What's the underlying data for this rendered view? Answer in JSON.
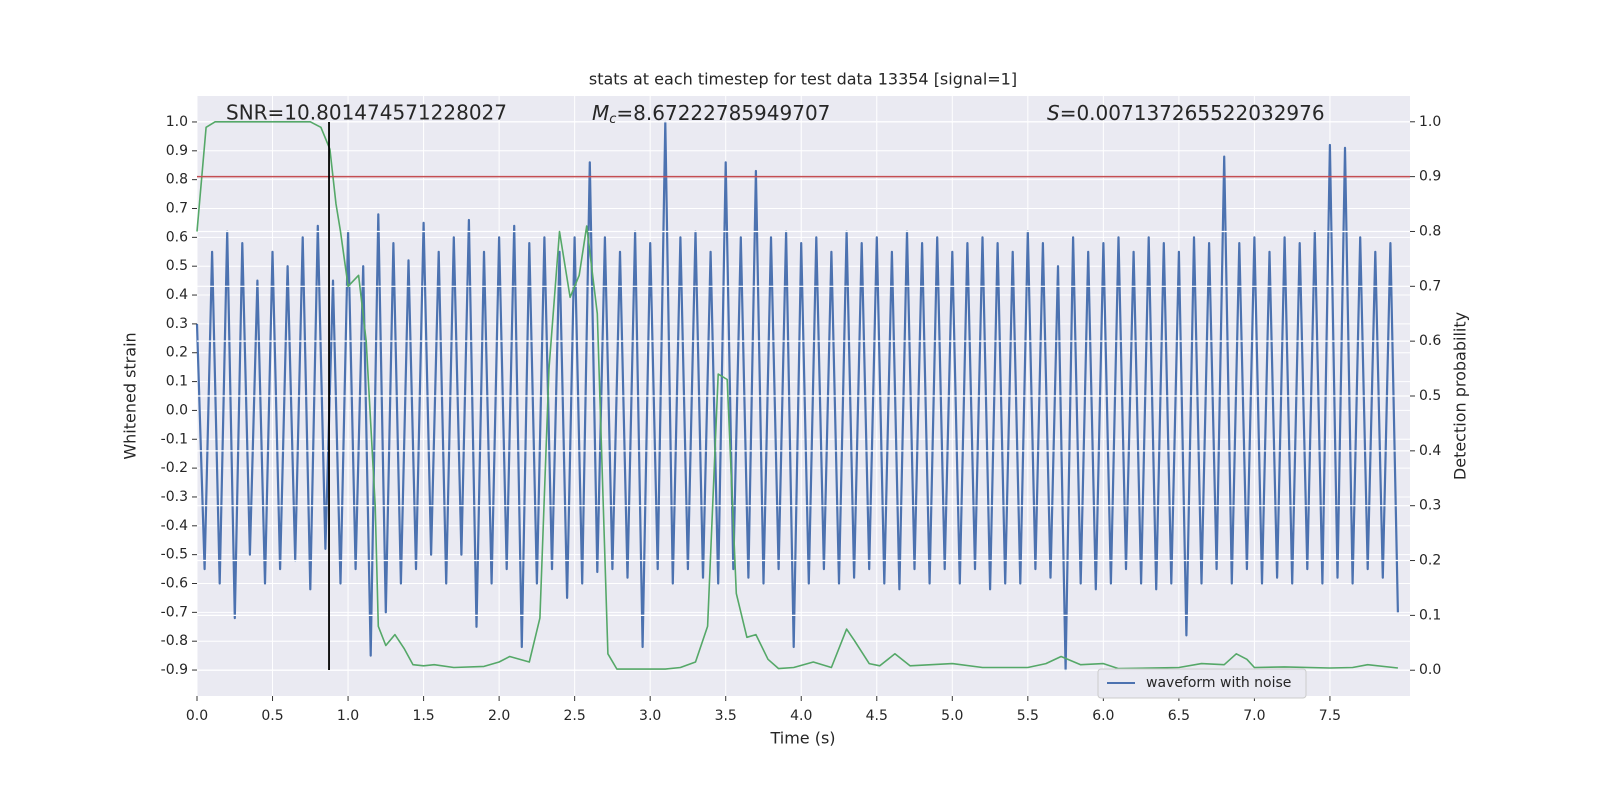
{
  "chart_data": {
    "type": "line",
    "title": "stats at each timestep for test data 13354 [signal=1]",
    "xlabel": "Time (s)",
    "ylabel": "Whitened strain",
    "y2label": "Detection probability",
    "annotations": [
      {
        "text": "SNR=10.801474571228027"
      },
      {
        "symbol": "M",
        "subscript": "c",
        "text": "=8.67222785949707"
      },
      {
        "symbol": "S",
        "text": "=0.007137265522032976"
      }
    ],
    "xlim": [
      0,
      8.03
    ],
    "ylim": [
      -0.99,
      1.09
    ],
    "y2lim": [
      -0.047,
      1.047
    ],
    "xticks": [
      {
        "value": 0,
        "label": "0.0"
      },
      0.5,
      {
        "value": 1,
        "label": "1.0"
      },
      1.5,
      {
        "value": 2,
        "label": "2.0"
      },
      2.5,
      {
        "value": 3,
        "label": "3.0"
      },
      3.5,
      {
        "value": 4,
        "label": "4.0"
      },
      4.5,
      {
        "value": 5,
        "label": "5.0"
      },
      5.5,
      {
        "value": 6,
        "label": "6.0"
      },
      6.5,
      {
        "value": 7,
        "label": "7.0"
      },
      7.5
    ],
    "yticks": [
      -0.9,
      -0.8,
      -0.7,
      -0.6,
      -0.5,
      -0.4,
      -0.3,
      -0.2,
      -0.1,
      {
        "value": 0,
        "label": "0.0"
      },
      0.1,
      0.2,
      0.3,
      0.4,
      0.5,
      0.6,
      0.7,
      0.8,
      0.9,
      {
        "value": 1,
        "label": "1.0"
      }
    ],
    "y2ticks": [
      {
        "value": 0,
        "label": "0.0"
      },
      0.1,
      0.2,
      0.3,
      0.4,
      0.5,
      0.6,
      0.7,
      0.8,
      0.9,
      {
        "value": 1,
        "label": "1.0"
      }
    ],
    "grid": true,
    "legend": "lower right",
    "series": [
      {
        "name": "waveform with noise",
        "color": "#4c72b0",
        "axis": "y",
        "x": [
          0,
          0.05,
          0.1,
          0.15,
          0.2,
          0.25,
          0.3,
          0.35,
          0.4,
          0.45,
          0.5,
          0.55,
          0.6,
          0.65,
          0.7,
          0.75,
          0.8,
          0.85,
          0.9,
          0.95,
          1,
          1.05,
          1.1,
          1.15,
          1.2,
          1.25,
          1.3,
          1.35,
          1.4,
          1.45,
          1.5,
          1.55,
          1.6,
          1.65,
          1.7,
          1.75,
          1.8,
          1.85,
          1.9,
          1.95,
          2,
          2.05,
          2.1,
          2.15,
          2.2,
          2.25,
          2.3,
          2.35,
          2.4,
          2.45,
          2.5,
          2.55,
          2.6,
          2.65,
          2.7,
          2.75,
          2.8,
          2.85,
          2.9,
          2.95,
          3,
          3.05,
          3.1,
          3.15,
          3.2,
          3.25,
          3.3,
          3.35,
          3.4,
          3.45,
          3.5,
          3.55,
          3.6,
          3.65,
          3.7,
          3.75,
          3.8,
          3.85,
          3.9,
          3.95,
          4,
          4.05,
          4.1,
          4.15,
          4.2,
          4.25,
          4.3,
          4.35,
          4.4,
          4.45,
          4.5,
          4.55,
          4.6,
          4.65,
          4.7,
          4.75,
          4.8,
          4.85,
          4.9,
          4.95,
          5,
          5.05,
          5.1,
          5.15,
          5.2,
          5.25,
          5.3,
          5.35,
          5.4,
          5.45,
          5.5,
          5.55,
          5.6,
          5.65,
          5.7,
          5.75,
          5.8,
          5.85,
          5.9,
          5.95,
          6,
          6.05,
          6.1,
          6.15,
          6.2,
          6.25,
          6.3,
          6.35,
          6.4,
          6.45,
          6.5,
          6.55,
          6.6,
          6.65,
          6.7,
          6.75,
          6.8,
          6.85,
          6.9,
          6.95,
          7,
          7.05,
          7.1,
          7.15,
          7.2,
          7.25,
          7.3,
          7.35,
          7.4,
          7.45,
          7.5,
          7.55,
          7.6,
          7.65,
          7.7,
          7.75,
          7.8,
          7.85,
          7.9,
          7.95
        ],
        "values": [
          0.3,
          -0.55,
          0.55,
          -0.6,
          0.62,
          -0.72,
          0.58,
          -0.5,
          0.45,
          -0.6,
          0.55,
          -0.55,
          0.5,
          -0.52,
          0.6,
          -0.62,
          0.64,
          -0.48,
          0.45,
          -0.6,
          0.62,
          -0.55,
          0.5,
          -0.85,
          0.68,
          -0.7,
          0.58,
          -0.6,
          0.52,
          -0.55,
          0.65,
          -0.5,
          0.55,
          -0.6,
          0.6,
          -0.5,
          0.66,
          -0.75,
          0.55,
          -0.6,
          0.6,
          -0.55,
          0.64,
          -0.82,
          0.58,
          -0.6,
          0.6,
          -0.55,
          0.55,
          -0.65,
          0.6,
          -0.6,
          0.86,
          -0.56,
          0.6,
          -0.55,
          0.55,
          -0.58,
          0.62,
          -0.82,
          0.58,
          -0.55,
          1.0,
          -0.6,
          0.6,
          -0.55,
          0.62,
          -0.58,
          0.55,
          -0.6,
          0.86,
          -0.55,
          0.6,
          -0.58,
          0.83,
          -0.6,
          0.6,
          -0.55,
          0.62,
          -0.82,
          0.58,
          -0.6,
          0.6,
          -0.55,
          0.55,
          -0.6,
          0.62,
          -0.58,
          0.58,
          -0.55,
          0.6,
          -0.6,
          0.55,
          -0.62,
          0.62,
          -0.55,
          0.58,
          -0.6,
          0.6,
          -0.55,
          0.55,
          -0.6,
          0.58,
          -0.55,
          0.6,
          -0.62,
          0.58,
          -0.6,
          0.55,
          -0.6,
          0.62,
          -0.55,
          0.58,
          -0.58,
          0.5,
          -0.9,
          0.6,
          -0.6,
          0.55,
          -0.62,
          0.58,
          -0.6,
          0.6,
          -0.55,
          0.55,
          -0.6,
          0.6,
          -0.62,
          0.58,
          -0.6,
          0.55,
          -0.78,
          0.6,
          -0.6,
          0.58,
          -0.55,
          0.88,
          -0.6,
          0.58,
          -0.55,
          0.6,
          -0.6,
          0.55,
          -0.58,
          0.6,
          -0.6,
          0.58,
          -0.55,
          0.62,
          -0.6,
          0.92,
          -0.58,
          0.91,
          -0.6,
          0.6,
          -0.55,
          0.55,
          -0.58,
          0.58,
          -0.7
        ]
      },
      {
        "color": "#55a868",
        "axis": "y2",
        "x": [
          0,
          0.06,
          0.12,
          0.75,
          0.82,
          0.88,
          0.92,
          0.95,
          1,
          1.07,
          1.12,
          1.18,
          1.2,
          1.25,
          1.31,
          1.37,
          1.43,
          1.5,
          1.57,
          1.7,
          1.9,
          2,
          2.07,
          2.2,
          2.27,
          2.33,
          2.4,
          2.47,
          2.53,
          2.58,
          2.65,
          2.72,
          2.78,
          3.1,
          3.2,
          3.3,
          3.38,
          3.45,
          3.51,
          3.57,
          3.64,
          3.7,
          3.78,
          3.85,
          3.95,
          4.08,
          4.2,
          4.3,
          4.35,
          4.45,
          4.52,
          4.62,
          4.72,
          5,
          5.2,
          5.5,
          5.62,
          5.72,
          5.85,
          6,
          6.1,
          6.5,
          6.65,
          6.8,
          6.88,
          6.95,
          7,
          7.2,
          7.5,
          7.65,
          7.75,
          7.95
        ],
        "values": [
          0.8,
          0.99,
          1.0,
          1.0,
          0.99,
          0.95,
          0.85,
          0.8,
          0.7,
          0.72,
          0.6,
          0.3,
          0.08,
          0.045,
          0.065,
          0.04,
          0.01,
          0.008,
          0.01,
          0.005,
          0.007,
          0.015,
          0.025,
          0.015,
          0.095,
          0.55,
          0.8,
          0.68,
          0.72,
          0.81,
          0.65,
          0.03,
          0.002,
          0.002,
          0.005,
          0.015,
          0.08,
          0.54,
          0.53,
          0.14,
          0.06,
          0.065,
          0.02,
          0.003,
          0.005,
          0.015,
          0.005,
          0.075,
          0.055,
          0.012,
          0.008,
          0.03,
          0.008,
          0.012,
          0.005,
          0.005,
          0.012,
          0.025,
          0.01,
          0.012,
          0.003,
          0.005,
          0.012,
          0.01,
          0.03,
          0.02,
          0.005,
          0.006,
          0.004,
          0.005,
          0.01,
          0.004
        ]
      }
    ],
    "hlines": [
      {
        "value": 0.9,
        "axis": "y2",
        "color": "#c44e52"
      }
    ],
    "vlines": [
      {
        "x": 0.874,
        "ymin": -0.9,
        "ymax": 1.0,
        "color": "#000000"
      }
    ]
  }
}
